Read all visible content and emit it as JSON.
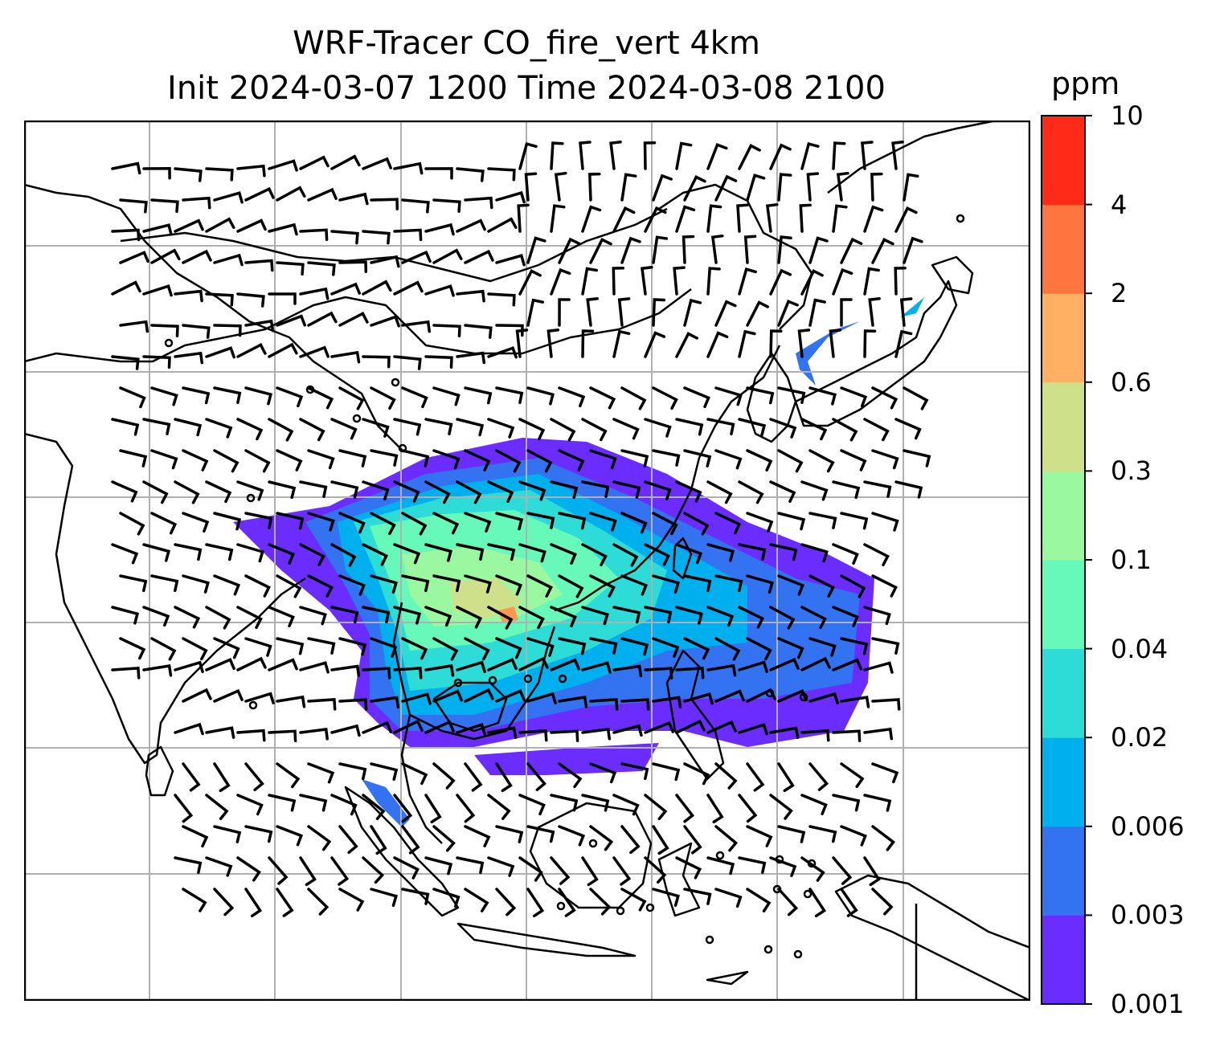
{
  "title_line1": "WRF-Tracer CO_fire_vert 4km",
  "title_line2": "Init 2024-03-07 1200 Time 2024-03-08 2100",
  "colorbar": {
    "units": "ppm",
    "levels": [
      "0.001",
      "0.003",
      "0.006",
      "0.02",
      "0.04",
      "0.1",
      "0.3",
      "0.6",
      "2",
      "4",
      "10"
    ],
    "colors": [
      "#6a2cff",
      "#3373f2",
      "#00b0ee",
      "#2ddbd7",
      "#66f9b9",
      "#9af9a0",
      "#cfe08a",
      "#ffb062",
      "#ff7540",
      "#ff2b18"
    ]
  },
  "map": {
    "gridline_color": "#b0b0b0",
    "coast_color": "#000000",
    "barb_color": "#000000"
  }
}
